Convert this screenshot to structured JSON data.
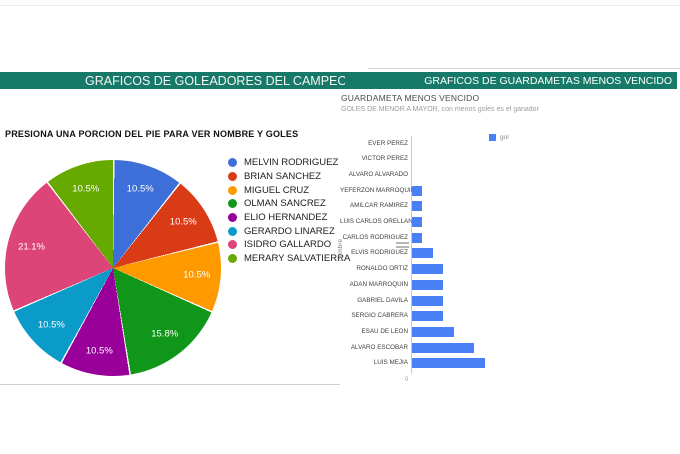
{
  "page": {
    "left_header": "GRAFICOS DE GOLEADORES DEL CAMPEONAT",
    "right_header": "GRAFICOS DE GUARDAMETAS MENOS VENCIDO",
    "header_bg": "#177a68"
  },
  "left_panel": {
    "instruction": "PRESIONA UNA PORCION DEL PIE PARA VER NOMBRE Y GOLES"
  },
  "chart_data": [
    {
      "type": "pie",
      "title": "",
      "legend_position": "right",
      "labels": [
        "MELVIN RODRIGUEZ",
        "BRIAN SANCHEZ",
        "MIGUEL CRUZ",
        "OLMAN SANCREZ",
        "ELIO HERNANDEZ",
        "GERARDO LINAREZ",
        "ISIDRO GALLARDO",
        "MERARY SALVATIERRA"
      ],
      "values_percent": [
        10.5,
        10.5,
        10.5,
        15.8,
        10.5,
        10.5,
        21.1,
        10.5
      ],
      "colors": [
        "#3e6fd8",
        "#d93b17",
        "#ff9900",
        "#109618",
        "#990099",
        "#0b9bc9",
        "#dd4477",
        "#66aa00"
      ]
    },
    {
      "type": "bar",
      "orientation": "horizontal",
      "title": "GUARDAMETA MENOS VENCIDO",
      "subtitle": "GOLES DE MENOR A MAYOR, con menos goles es el ganador",
      "ylabel": "nombre",
      "xlabel": "",
      "xticks": [
        "0"
      ],
      "xlim": [
        0,
        7
      ],
      "legend_position": "top-right",
      "grid": false,
      "categories": [
        "EVER PEREZ",
        "VICTOR PEREZ",
        "ALVARO ALVARADO",
        "YEFERZON MARROQUIN",
        "AMILCAR RAMIREZ",
        "LUIS CARLOS ORELLANA",
        "CARLOS RODRIGUEZ",
        "ELVIS RODRIGUEZ",
        "RONALDO ORTIZ",
        "ADAN MARROQUIN",
        "GABRIEL DAVILA",
        "SERGIO CABRERA",
        "ESAU DE LEON",
        "ALVARO ESCOBAR",
        "LUIS MEJIA"
      ],
      "series": [
        {
          "name": "gol",
          "color": "#4a80f5",
          "values": [
            0,
            0,
            0,
            1,
            1,
            1,
            1,
            2,
            3,
            3,
            3,
            3,
            4,
            6,
            7
          ]
        }
      ]
    }
  ]
}
